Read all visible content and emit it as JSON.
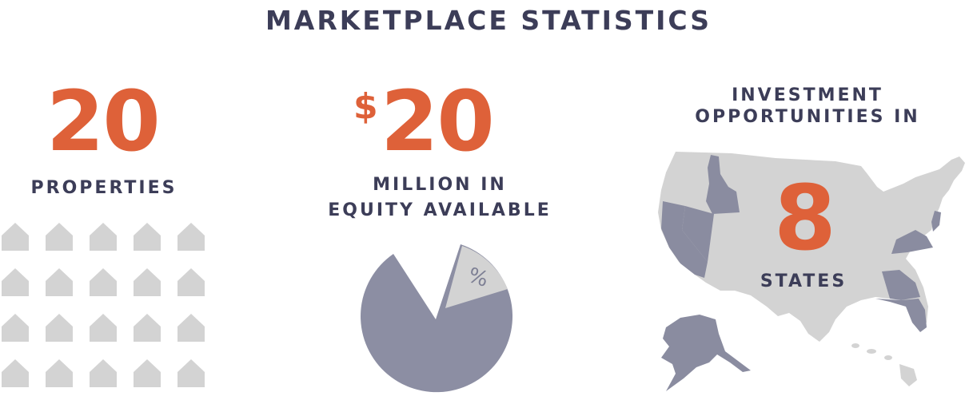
{
  "title": "MARKETPLACE STATISTICS",
  "properties": {
    "count": "20",
    "label": "PROPERTIES",
    "house_icon": "house-icon",
    "house_count": 20
  },
  "equity": {
    "currency": "$",
    "amount": "20",
    "label_line1": "MILLION IN",
    "label_line2": "EQUITY AVAILABLE",
    "pie_symbol": "%"
  },
  "states": {
    "label_line1": "INVESTMENT",
    "label_line2": "OPPORTUNITIES IN",
    "count": "8",
    "label": "STATES"
  },
  "colors": {
    "accent": "#de6139",
    "text": "#3c3d58",
    "light_gray": "#d3d3d3",
    "slate": "#8c8ea3",
    "highlight_states": "#8a8ca0"
  }
}
